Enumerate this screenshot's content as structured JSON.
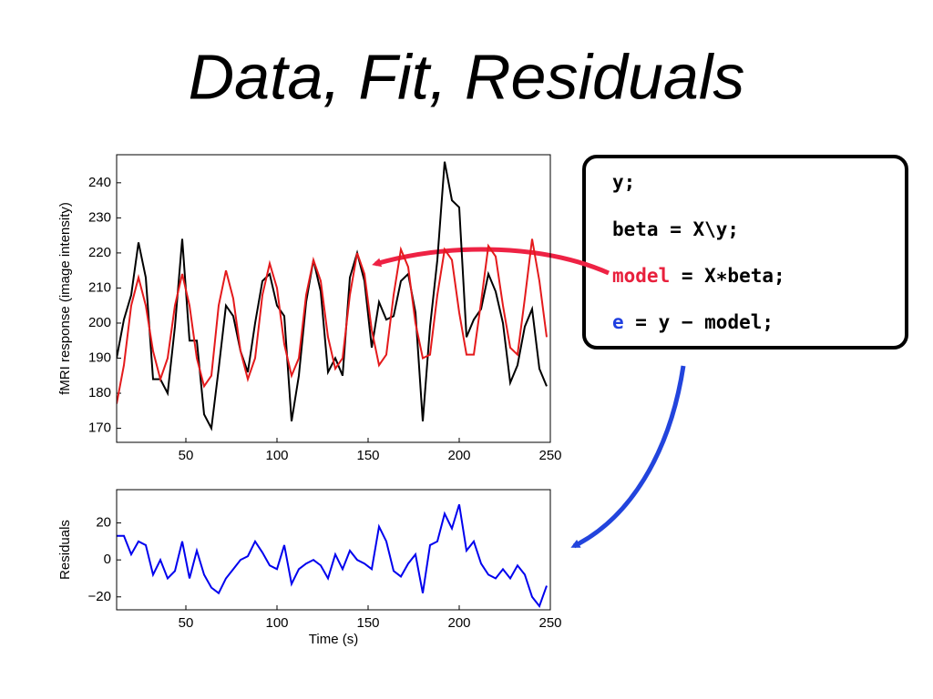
{
  "slide": {
    "title": "Data, Fit, Residuals",
    "code": [
      [
        "y;"
      ],
      [
        "beta = X\\y;"
      ],
      [
        "model",
        " = X∗beta;"
      ],
      [
        "e",
        " = y − model;"
      ]
    ]
  },
  "chart_data": [
    {
      "type": "line",
      "ylabel": "fMRI response (image intensity)",
      "x": [
        12,
        16,
        20,
        24,
        28,
        32,
        36,
        40,
        44,
        48,
        52,
        56,
        60,
        64,
        68,
        72,
        76,
        80,
        84,
        88,
        92,
        96,
        100,
        104,
        108,
        112,
        116,
        120,
        124,
        128,
        132,
        136,
        140,
        144,
        148,
        152,
        156,
        160,
        164,
        168,
        172,
        176,
        180,
        184,
        188,
        192,
        196,
        200,
        204,
        208,
        212,
        216,
        220,
        224,
        228,
        232,
        236,
        240,
        244,
        248
      ],
      "series": [
        {
          "color": "#000000",
          "values": [
            190,
            201,
            208,
            223,
            213,
            184,
            184,
            180,
            199,
            224,
            195,
            195,
            174,
            170,
            187,
            205,
            202,
            192,
            186,
            200,
            212,
            214,
            205,
            202,
            172,
            185,
            206,
            218,
            209,
            186,
            190,
            185,
            213,
            220,
            212,
            193,
            206,
            201,
            202,
            212,
            214,
            203,
            172,
            199,
            218,
            246,
            235,
            233,
            196,
            201,
            204,
            214,
            209,
            200,
            183,
            188,
            199,
            204,
            187,
            182
          ]
        },
        {
          "color": "#e41a1c",
          "values": [
            177,
            188,
            205,
            213,
            205,
            192,
            184,
            190,
            205,
            214,
            205,
            190,
            182,
            185,
            205,
            215,
            207,
            192,
            184,
            190,
            208,
            217,
            210,
            194,
            185,
            190,
            208,
            218,
            212,
            196,
            187,
            190,
            208,
            220,
            214,
            198,
            188,
            191,
            208,
            221,
            216,
            200,
            190,
            191,
            208,
            221,
            218,
            203,
            191,
            191,
            206,
            222,
            219,
            205,
            193,
            191,
            207,
            224,
            212,
            196
          ]
        }
      ],
      "xlim": [
        12,
        250
      ],
      "xticks": [
        50,
        100,
        150,
        200,
        250
      ],
      "ylim": [
        166,
        248
      ],
      "yticks": [
        170,
        180,
        190,
        200,
        210,
        220,
        230,
        240
      ]
    },
    {
      "type": "line",
      "xlabel": "Time (s)",
      "ylabel": "Residuals",
      "x": [
        12,
        16,
        20,
        24,
        28,
        32,
        36,
        40,
        44,
        48,
        52,
        56,
        60,
        64,
        68,
        72,
        76,
        80,
        84,
        88,
        92,
        96,
        100,
        104,
        108,
        112,
        116,
        120,
        124,
        128,
        132,
        136,
        140,
        144,
        148,
        152,
        156,
        160,
        164,
        168,
        172,
        176,
        180,
        184,
        188,
        192,
        196,
        200,
        204,
        208,
        212,
        216,
        220,
        224,
        228,
        232,
        236,
        240,
        244,
        248
      ],
      "series": [
        {
          "color": "#0000ee",
          "values": [
            13,
            13,
            3,
            10,
            8,
            -8,
            0,
            -10,
            -6,
            10,
            -10,
            5,
            -8,
            -15,
            -18,
            -10,
            -5,
            0,
            2,
            10,
            4,
            -3,
            -5,
            8,
            -13,
            -5,
            -2,
            0,
            -3,
            -10,
            3,
            -5,
            5,
            0,
            -2,
            -5,
            18,
            10,
            -6,
            -9,
            -2,
            3,
            -18,
            8,
            10,
            25,
            17,
            30,
            5,
            10,
            -2,
            -8,
            -10,
            -5,
            -10,
            -3,
            -8,
            -20,
            -25,
            -14
          ]
        }
      ],
      "xlim": [
        12,
        250
      ],
      "xticks": [
        50,
        100,
        150,
        200,
        250
      ],
      "ylim": [
        -27,
        38
      ],
      "yticks": [
        {
          "value": -20,
          "label": "−20"
        },
        0,
        20
      ]
    }
  ]
}
